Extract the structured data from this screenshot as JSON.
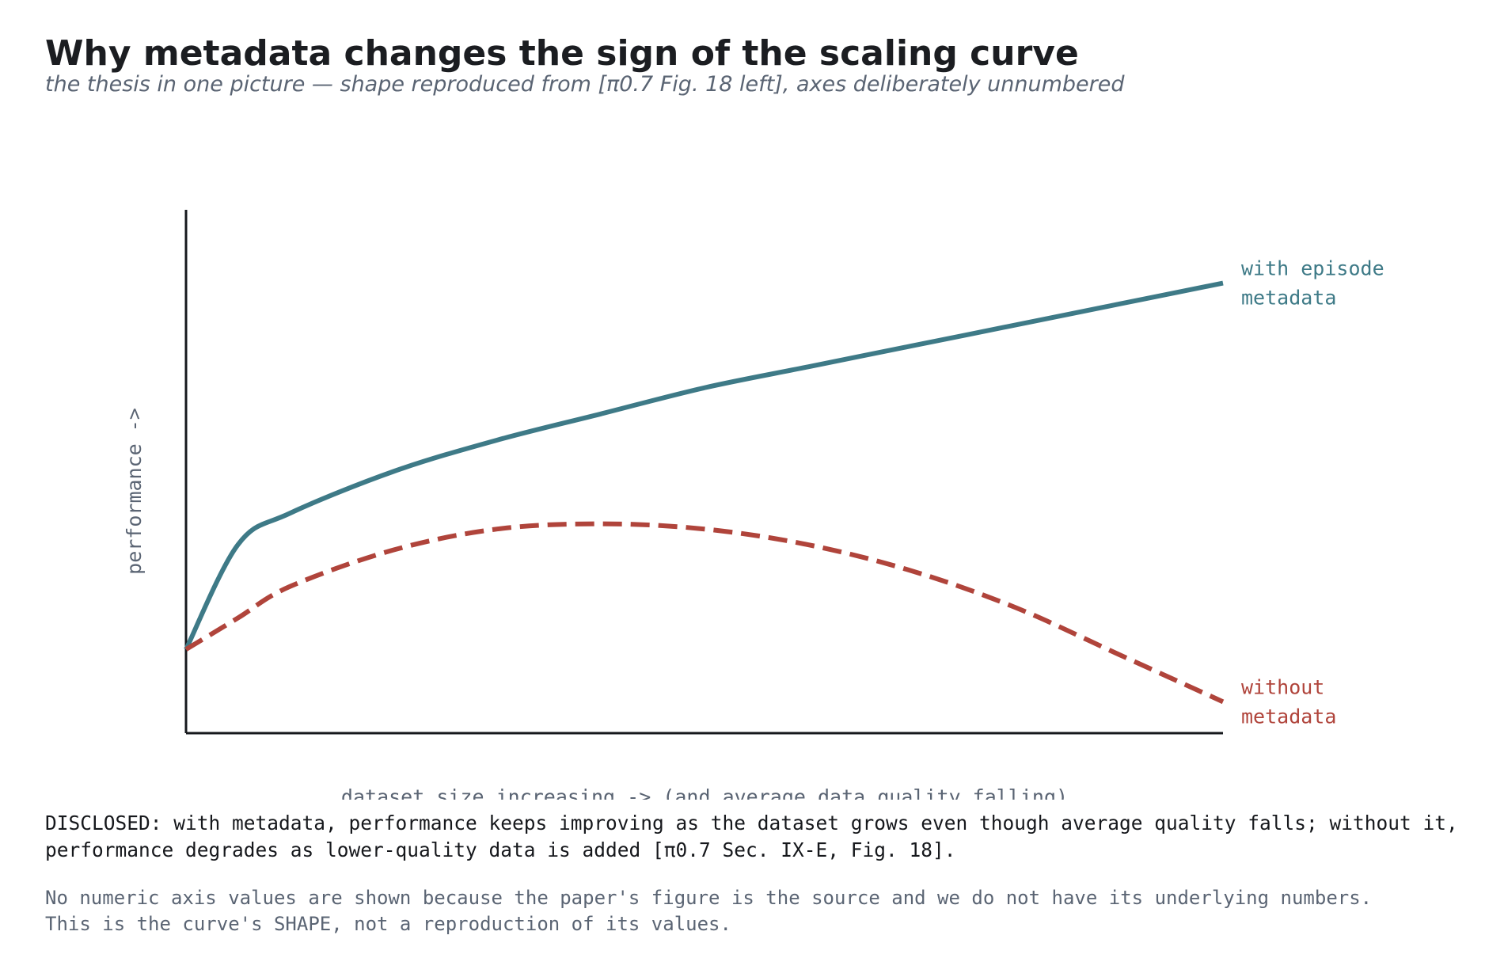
{
  "title": "Why metadata changes the sign of the scaling curve",
  "subtitle": "the thesis in one picture — shape reproduced from [π0.7 Fig. 18 left], axes deliberately unnumbered",
  "chart_data": {
    "type": "line",
    "title": "",
    "xlabel": "dataset size increasing  ->   (and average data quality falling)",
    "ylabel": "performance  ->",
    "grid": false,
    "legend": "inline labels at right end of each curve",
    "x": [
      0,
      0.05,
      0.1,
      0.2,
      0.3,
      0.4,
      0.5,
      0.6,
      0.7,
      0.8,
      0.9,
      1.0
    ],
    "series": [
      {
        "name": "with episode metadata",
        "label_lines": [
          "with episode",
          "metadata"
        ],
        "color": "#3e7a87",
        "style": "solid",
        "values": [
          0.16,
          0.36,
          0.42,
          0.5,
          0.56,
          0.61,
          0.66,
          0.7,
          0.74,
          0.78,
          0.82,
          0.86
        ]
      },
      {
        "name": "without metadata",
        "label_lines": [
          "without",
          "metadata"
        ],
        "color": "#b0443b",
        "style": "dashed",
        "values": [
          0.16,
          0.22,
          0.28,
          0.35,
          0.39,
          0.4,
          0.39,
          0.36,
          0.31,
          0.24,
          0.15,
          0.06
        ]
      }
    ]
  },
  "disclosed": [
    "DISCLOSED: with metadata, performance keeps improving as the dataset grows even though average quality falls; without it,",
    "performance degrades as lower-quality data is added  [π0.7 Sec. IX-E, Fig. 18]."
  ],
  "note": [
    "No numeric axis values are shown because the paper's figure is the source and we do not have its underlying numbers.",
    "This is the curve's SHAPE, not a reproduction of its values."
  ]
}
